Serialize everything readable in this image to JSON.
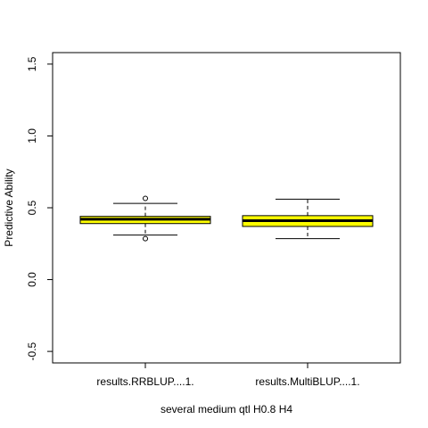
{
  "chart_data": {
    "type": "box",
    "xlabel": "several medium qtl H0.8 H4",
    "ylabel": "Predictive Ability",
    "ylim": [
      -0.58,
      1.58
    ],
    "yticks": [
      -0.5,
      0.0,
      0.5,
      1.0,
      1.5
    ],
    "ytick_labels": [
      "-0.5",
      "0.0",
      "0.5",
      "1.0",
      "1.5"
    ],
    "categories": [
      "results.RRBLUP....1.",
      "results.MultiBLUP....1."
    ],
    "box_color": "#ffff00",
    "boxes": [
      {
        "whisker_low": 0.31,
        "q1": 0.39,
        "median": 0.42,
        "q3": 0.44,
        "whisker_high": 0.53,
        "outliers": [
          0.285,
          0.565
        ]
      },
      {
        "whisker_low": 0.285,
        "q1": 0.37,
        "median": 0.41,
        "q3": 0.445,
        "whisker_high": 0.56,
        "outliers": []
      }
    ]
  }
}
